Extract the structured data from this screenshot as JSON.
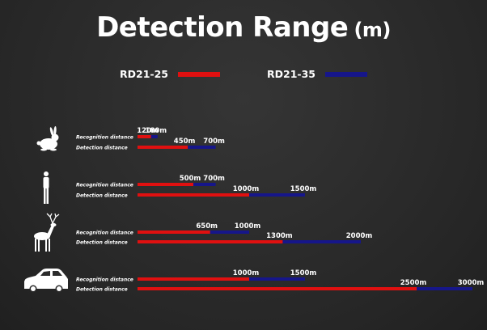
{
  "chart_data": {
    "type": "bar",
    "title": "Detection Range",
    "unit": "(m)",
    "series": [
      {
        "name": "RD21-25",
        "color": "#e01010"
      },
      {
        "name": "RD21-35",
        "color": "#16168a"
      }
    ],
    "categories": [
      {
        "icon": "rabbit-icon",
        "rows": [
          {
            "label": "Recognition distance",
            "values": [
              120,
              180
            ]
          },
          {
            "label": "Detection distance",
            "values": [
              450,
              700
            ]
          }
        ]
      },
      {
        "icon": "person-icon",
        "rows": [
          {
            "label": "Recognition distance",
            "values": [
              500,
              700
            ]
          },
          {
            "label": "Detection distance",
            "values": [
              1000,
              1500
            ]
          }
        ]
      },
      {
        "icon": "deer-icon",
        "rows": [
          {
            "label": "Recognition distance",
            "values": [
              650,
              1000
            ]
          },
          {
            "label": "Detection distance",
            "values": [
              1300,
              2000
            ]
          }
        ]
      },
      {
        "icon": "car-icon",
        "rows": [
          {
            "label": "Recognition distance",
            "values": [
              1000,
              1500
            ]
          },
          {
            "label": "Detection distance",
            "values": [
              2500,
              3000
            ]
          }
        ]
      }
    ],
    "value_suffix": "m",
    "xlim": [
      0,
      3000
    ],
    "grid": false,
    "legend_position": "top"
  }
}
